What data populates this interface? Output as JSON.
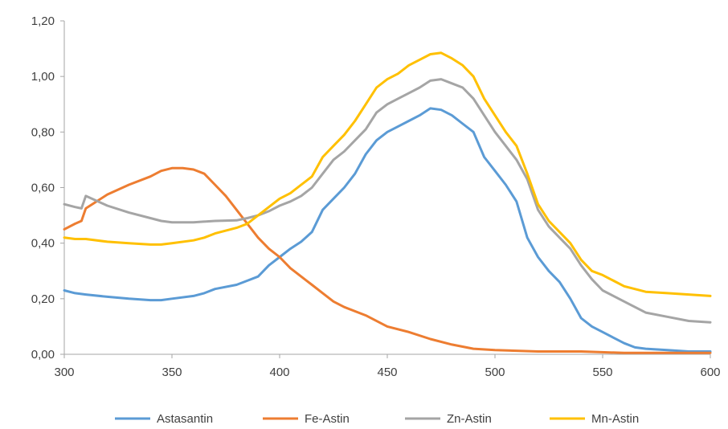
{
  "chart_data": {
    "type": "line",
    "title": "",
    "xlabel": "",
    "ylabel": "",
    "xlim": [
      300,
      600
    ],
    "ylim": [
      0,
      1.2
    ],
    "x_ticks": [
      300,
      350,
      400,
      450,
      500,
      550,
      600
    ],
    "x_tick_labels": [
      "300",
      "350",
      "400",
      "450",
      "500",
      "550",
      "600"
    ],
    "y_ticks": [
      0,
      0.2,
      0.4,
      0.6,
      0.8,
      1.0,
      1.2
    ],
    "y_tick_labels": [
      "0,00",
      "0,20",
      "0,40",
      "0,60",
      "0,80",
      "1,00",
      "1,20"
    ],
    "grid": false,
    "legend_position": "bottom",
    "series": [
      {
        "name": "Astasantin",
        "color": "#5b9bd5",
        "x": [
          300,
          305,
          310,
          320,
          330,
          340,
          345,
          350,
          360,
          365,
          370,
          380,
          385,
          390,
          395,
          400,
          405,
          410,
          415,
          420,
          425,
          430,
          435,
          440,
          445,
          450,
          455,
          460,
          465,
          470,
          475,
          480,
          485,
          490,
          495,
          500,
          505,
          510,
          515,
          520,
          525,
          530,
          535,
          540,
          545,
          550,
          555,
          560,
          565,
          570,
          580,
          590,
          600
        ],
        "y": [
          0.23,
          0.22,
          0.215,
          0.207,
          0.2,
          0.195,
          0.195,
          0.2,
          0.21,
          0.22,
          0.235,
          0.25,
          0.265,
          0.28,
          0.32,
          0.35,
          0.38,
          0.405,
          0.44,
          0.52,
          0.56,
          0.6,
          0.65,
          0.72,
          0.77,
          0.8,
          0.82,
          0.84,
          0.86,
          0.885,
          0.88,
          0.86,
          0.83,
          0.8,
          0.71,
          0.66,
          0.61,
          0.55,
          0.42,
          0.35,
          0.3,
          0.26,
          0.2,
          0.13,
          0.1,
          0.08,
          0.06,
          0.04,
          0.025,
          0.02,
          0.015,
          0.01,
          0.01
        ]
      },
      {
        "name": "Fe-Astin",
        "color": "#ed7d31",
        "x": [
          300,
          305,
          308,
          310,
          315,
          320,
          330,
          340,
          345,
          350,
          355,
          360,
          365,
          370,
          375,
          380,
          385,
          390,
          395,
          400,
          405,
          410,
          415,
          420,
          425,
          430,
          440,
          450,
          460,
          470,
          480,
          490,
          500,
          520,
          540,
          560,
          580,
          600
        ],
        "y": [
          0.45,
          0.47,
          0.48,
          0.525,
          0.55,
          0.575,
          0.61,
          0.64,
          0.66,
          0.67,
          0.67,
          0.665,
          0.65,
          0.61,
          0.57,
          0.52,
          0.47,
          0.42,
          0.38,
          0.35,
          0.31,
          0.28,
          0.25,
          0.22,
          0.19,
          0.17,
          0.14,
          0.1,
          0.08,
          0.055,
          0.035,
          0.02,
          0.015,
          0.01,
          0.01,
          0.005,
          0.005,
          0.005
        ]
      },
      {
        "name": "Zn-Astin",
        "color": "#a5a5a5",
        "x": [
          300,
          305,
          308,
          310,
          320,
          330,
          340,
          345,
          350,
          360,
          370,
          380,
          385,
          390,
          395,
          400,
          405,
          410,
          415,
          420,
          425,
          430,
          435,
          440,
          445,
          450,
          455,
          460,
          465,
          470,
          475,
          480,
          485,
          490,
          495,
          500,
          505,
          510,
          515,
          520,
          525,
          530,
          535,
          540,
          545,
          550,
          560,
          570,
          580,
          590,
          600
        ],
        "y": [
          0.54,
          0.53,
          0.525,
          0.57,
          0.535,
          0.51,
          0.49,
          0.48,
          0.475,
          0.475,
          0.48,
          0.482,
          0.49,
          0.5,
          0.515,
          0.535,
          0.55,
          0.57,
          0.6,
          0.65,
          0.7,
          0.73,
          0.77,
          0.81,
          0.87,
          0.9,
          0.92,
          0.94,
          0.96,
          0.985,
          0.99,
          0.975,
          0.96,
          0.92,
          0.86,
          0.8,
          0.75,
          0.7,
          0.63,
          0.52,
          0.46,
          0.42,
          0.38,
          0.32,
          0.27,
          0.23,
          0.19,
          0.15,
          0.135,
          0.12,
          0.115
        ]
      },
      {
        "name": "Mn-Astin",
        "color": "#ffc000",
        "x": [
          300,
          305,
          310,
          320,
          330,
          340,
          345,
          350,
          360,
          365,
          370,
          380,
          385,
          390,
          395,
          400,
          405,
          410,
          415,
          420,
          425,
          430,
          435,
          440,
          445,
          450,
          455,
          460,
          465,
          470,
          475,
          480,
          485,
          490,
          495,
          500,
          505,
          510,
          515,
          520,
          525,
          530,
          535,
          540,
          545,
          550,
          560,
          570,
          580,
          590,
          600
        ],
        "y": [
          0.42,
          0.415,
          0.415,
          0.405,
          0.4,
          0.395,
          0.395,
          0.4,
          0.41,
          0.42,
          0.435,
          0.455,
          0.47,
          0.5,
          0.53,
          0.56,
          0.58,
          0.61,
          0.64,
          0.71,
          0.75,
          0.79,
          0.84,
          0.9,
          0.96,
          0.99,
          1.01,
          1.04,
          1.06,
          1.08,
          1.085,
          1.065,
          1.04,
          1.0,
          0.92,
          0.86,
          0.8,
          0.75,
          0.65,
          0.54,
          0.48,
          0.44,
          0.4,
          0.34,
          0.3,
          0.285,
          0.245,
          0.225,
          0.22,
          0.215,
          0.21
        ]
      }
    ]
  }
}
